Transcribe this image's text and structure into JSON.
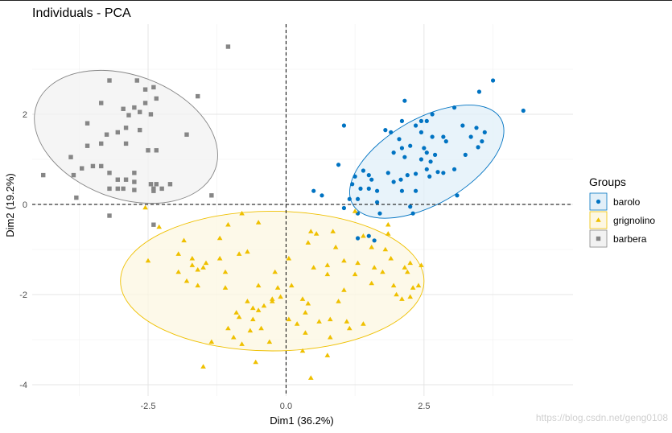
{
  "chart_data": {
    "type": "scatter",
    "title": "Individuals - PCA",
    "xlabel": "Dim1 (36.2%)",
    "ylabel": "Dim2 (19.2%)",
    "xlim": [
      -4.6,
      5.2
    ],
    "ylim": [
      -4.25,
      4.0
    ],
    "xticks": [
      -2.5,
      0.0,
      2.5
    ],
    "yticks": [
      -4,
      -2,
      0,
      2
    ],
    "xtick_labels": [
      "-2.5",
      "0.0",
      "2.5"
    ],
    "ytick_labels": [
      "-4",
      "-2",
      "0",
      "2"
    ],
    "grid": true,
    "legend": {
      "title": "Groups",
      "position": "right"
    },
    "series": [
      {
        "name": "barolo",
        "color": "#0073C2",
        "fill": "#E2EFF8",
        "marker": "circle",
        "ellipse": {
          "cx": 2.55,
          "cy": 0.95,
          "a": 1.55,
          "b": 0.95,
          "angle_deg": 30
        },
        "points": [
          [
            3.75,
            2.75
          ],
          [
            4.3,
            2.08
          ],
          [
            3.5,
            2.5
          ],
          [
            2.15,
            2.3
          ],
          [
            3.05,
            2.15
          ],
          [
            2.65,
            2.0
          ],
          [
            2.1,
            1.85
          ],
          [
            1.05,
            1.75
          ],
          [
            2.45,
            1.85
          ],
          [
            2.35,
            1.75
          ],
          [
            2.55,
            1.85
          ],
          [
            3.2,
            1.75
          ],
          [
            3.45,
            1.7
          ],
          [
            3.6,
            1.6
          ],
          [
            3.55,
            1.4
          ],
          [
            3.48,
            1.27
          ],
          [
            3.35,
            1.5
          ],
          [
            1.8,
            1.65
          ],
          [
            1.9,
            1.6
          ],
          [
            2.45,
            1.6
          ],
          [
            2.65,
            1.5
          ],
          [
            2.85,
            1.5
          ],
          [
            2.9,
            1.4
          ],
          [
            2.05,
            1.45
          ],
          [
            2.5,
            1.25
          ],
          [
            2.25,
            1.3
          ],
          [
            2.1,
            1.25
          ],
          [
            1.95,
            1.15
          ],
          [
            2.55,
            1.15
          ],
          [
            2.7,
            1.1
          ],
          [
            3.25,
            1.1
          ],
          [
            2.45,
            1.0
          ],
          [
            2.62,
            0.95
          ],
          [
            2.15,
            1.05
          ],
          [
            2.55,
            0.78
          ],
          [
            2.75,
            0.72
          ],
          [
            3.05,
            0.78
          ],
          [
            2.85,
            0.7
          ],
          [
            2.35,
            0.68
          ],
          [
            2.2,
            0.65
          ],
          [
            1.85,
            0.7
          ],
          [
            1.4,
            0.75
          ],
          [
            1.25,
            0.62
          ],
          [
            1.5,
            0.65
          ],
          [
            1.55,
            0.55
          ],
          [
            1.2,
            0.45
          ],
          [
            0.95,
            0.88
          ],
          [
            1.95,
            0.5
          ],
          [
            2.08,
            0.55
          ],
          [
            2.6,
            0.62
          ],
          [
            1.5,
            0.35
          ],
          [
            1.35,
            0.35
          ],
          [
            1.65,
            0.3
          ],
          [
            2.1,
            0.3
          ],
          [
            2.35,
            0.3
          ],
          [
            3.1,
            0.2
          ],
          [
            0.5,
            0.3
          ],
          [
            0.65,
            0.2
          ],
          [
            1.15,
            0.12
          ],
          [
            1.3,
            0.12
          ],
          [
            1.65,
            0.05
          ],
          [
            2.25,
            -0.05
          ],
          [
            1.05,
            -0.08
          ],
          [
            1.3,
            -0.2
          ],
          [
            1.7,
            -0.2
          ],
          [
            2.3,
            -0.2
          ],
          [
            1.5,
            -0.7
          ],
          [
            1.6,
            -0.8
          ],
          [
            1.3,
            -0.75
          ]
        ]
      },
      {
        "name": "grignolino",
        "color": "#EFC000",
        "fill": "#FDF7E3",
        "marker": "triangle",
        "ellipse": {
          "cx": -0.25,
          "cy": -1.7,
          "a": 2.75,
          "b": 1.55,
          "angle_deg": 0
        },
        "points": [
          [
            -2.55,
            -0.07
          ],
          [
            -0.8,
            -0.2
          ],
          [
            -0.5,
            -0.4
          ],
          [
            0.55,
            -0.65
          ],
          [
            0.85,
            -0.6
          ],
          [
            -2.5,
            -1.25
          ],
          [
            -1.85,
            -0.8
          ],
          [
            -1.2,
            -0.75
          ],
          [
            -1.05,
            -0.45
          ],
          [
            -2.3,
            -0.5
          ],
          [
            -1.7,
            -1.2
          ],
          [
            -1.95,
            -1.1
          ],
          [
            -1.7,
            -1.35
          ],
          [
            -1.5,
            -1.4
          ],
          [
            -1.45,
            -1.3
          ],
          [
            -1.6,
            -1.45
          ],
          [
            -1.95,
            -1.5
          ],
          [
            -1.8,
            -1.7
          ],
          [
            -1.6,
            -1.8
          ],
          [
            -1.1,
            -1.5
          ],
          [
            -1.2,
            -1.2
          ],
          [
            -0.85,
            -1.1
          ],
          [
            -0.7,
            -1.05
          ],
          [
            -0.2,
            -1.5
          ],
          [
            0.05,
            -1.2
          ],
          [
            0.4,
            -0.85
          ],
          [
            0.45,
            -0.6
          ],
          [
            0.75,
            -1.35
          ],
          [
            0.9,
            -0.95
          ],
          [
            1.05,
            -1.25
          ],
          [
            1.3,
            -1.3
          ],
          [
            1.4,
            -0.7
          ],
          [
            1.55,
            -0.95
          ],
          [
            1.8,
            -1.0
          ],
          [
            1.85,
            -0.65
          ],
          [
            1.6,
            -1.4
          ],
          [
            1.75,
            -1.5
          ],
          [
            1.9,
            -1.2
          ],
          [
            2.15,
            -1.4
          ],
          [
            2.25,
            -1.3
          ],
          [
            2.2,
            -1.5
          ],
          [
            2.3,
            -1.85
          ],
          [
            1.95,
            -1.8
          ],
          [
            2.0,
            -2.0
          ],
          [
            2.25,
            -2.05
          ],
          [
            2.1,
            -2.1
          ],
          [
            2.45,
            -1.35
          ],
          [
            2.4,
            -1.8
          ],
          [
            1.25,
            -0.15
          ],
          [
            1.85,
            -0.45
          ],
          [
            0.5,
            -1.4
          ],
          [
            0.75,
            -1.55
          ],
          [
            1.25,
            -1.55
          ],
          [
            1.55,
            -1.75
          ],
          [
            1.05,
            -1.9
          ],
          [
            0.95,
            -2.15
          ],
          [
            0.8,
            -2.55
          ],
          [
            1.1,
            -2.6
          ],
          [
            1.15,
            -2.75
          ],
          [
            1.4,
            -2.65
          ],
          [
            0.6,
            -2.6
          ],
          [
            0.8,
            -2.95
          ],
          [
            0.4,
            -2.2
          ],
          [
            0.35,
            -2.4
          ],
          [
            0.3,
            -2.1
          ],
          [
            0.05,
            -2.55
          ],
          [
            -0.1,
            -2.05
          ],
          [
            -0.25,
            -2.1
          ],
          [
            -0.4,
            -2.25
          ],
          [
            -0.5,
            -2.35
          ],
          [
            -0.6,
            -2.3
          ],
          [
            -0.7,
            -2.15
          ],
          [
            -0.85,
            -2.5
          ],
          [
            -0.6,
            -2.55
          ],
          [
            -0.45,
            -2.75
          ],
          [
            -0.65,
            -2.8
          ],
          [
            -0.8,
            -3.1
          ],
          [
            -0.95,
            -2.95
          ],
          [
            -0.9,
            -2.4
          ],
          [
            -1.05,
            -2.75
          ],
          [
            -1.35,
            -3.05
          ],
          [
            -0.3,
            -3.05
          ],
          [
            -0.25,
            -2.15
          ],
          [
            -0.15,
            -1.85
          ],
          [
            -0.5,
            -1.8
          ],
          [
            -1.1,
            -1.85
          ],
          [
            0.1,
            -1.8
          ],
          [
            0.75,
            -3.35
          ],
          [
            0.3,
            -3.25
          ],
          [
            -0.55,
            -3.5
          ],
          [
            0.2,
            -2.65
          ],
          [
            0.35,
            -2.85
          ],
          [
            0.45,
            -3.85
          ],
          [
            -1.5,
            -3.6
          ]
        ]
      },
      {
        "name": "barbera",
        "color": "#868686",
        "fill": "#F2F2F2",
        "marker": "square",
        "ellipse": {
          "cx": -2.9,
          "cy": 1.5,
          "a": 1.72,
          "b": 1.37,
          "angle_deg": -20
        },
        "points": [
          [
            -1.05,
            3.5
          ],
          [
            -3.2,
            2.75
          ],
          [
            -2.7,
            2.75
          ],
          [
            -2.4,
            2.6
          ],
          [
            -2.55,
            2.55
          ],
          [
            -1.6,
            2.4
          ],
          [
            -2.35,
            2.35
          ],
          [
            -2.55,
            2.25
          ],
          [
            -3.35,
            2.25
          ],
          [
            -2.75,
            2.15
          ],
          [
            -2.95,
            2.12
          ],
          [
            -2.65,
            2.05
          ],
          [
            -2.45,
            2.0
          ],
          [
            -2.85,
            1.98
          ],
          [
            -3.6,
            1.8
          ],
          [
            -2.9,
            1.7
          ],
          [
            -3.05,
            1.6
          ],
          [
            -3.25,
            1.55
          ],
          [
            -2.65,
            1.65
          ],
          [
            -1.8,
            1.55
          ],
          [
            -3.35,
            1.35
          ],
          [
            -3.6,
            1.3
          ],
          [
            -2.9,
            1.35
          ],
          [
            -2.5,
            1.2
          ],
          [
            -2.35,
            1.2
          ],
          [
            -3.9,
            1.05
          ],
          [
            -3.35,
            0.85
          ],
          [
            -3.7,
            0.8
          ],
          [
            -3.5,
            0.85
          ],
          [
            -4.4,
            0.65
          ],
          [
            -3.85,
            0.65
          ],
          [
            -3.2,
            0.7
          ],
          [
            -2.75,
            0.7
          ],
          [
            -3.05,
            0.55
          ],
          [
            -2.9,
            0.55
          ],
          [
            -2.75,
            0.5
          ],
          [
            -2.1,
            0.45
          ],
          [
            -2.35,
            0.45
          ],
          [
            -2.4,
            0.35
          ],
          [
            -2.45,
            0.45
          ],
          [
            -3.05,
            0.35
          ],
          [
            -3.2,
            0.35
          ],
          [
            -2.95,
            0.35
          ],
          [
            -2.75,
            0.32
          ],
          [
            -2.25,
            0.35
          ],
          [
            -2.4,
            0.3
          ],
          [
            -3.8,
            0.15
          ],
          [
            -1.35,
            0.2
          ],
          [
            -3.2,
            -0.25
          ],
          [
            -2.4,
            -0.45
          ]
        ]
      }
    ]
  },
  "watermark": "https://blog.csdn.net/geng0108"
}
